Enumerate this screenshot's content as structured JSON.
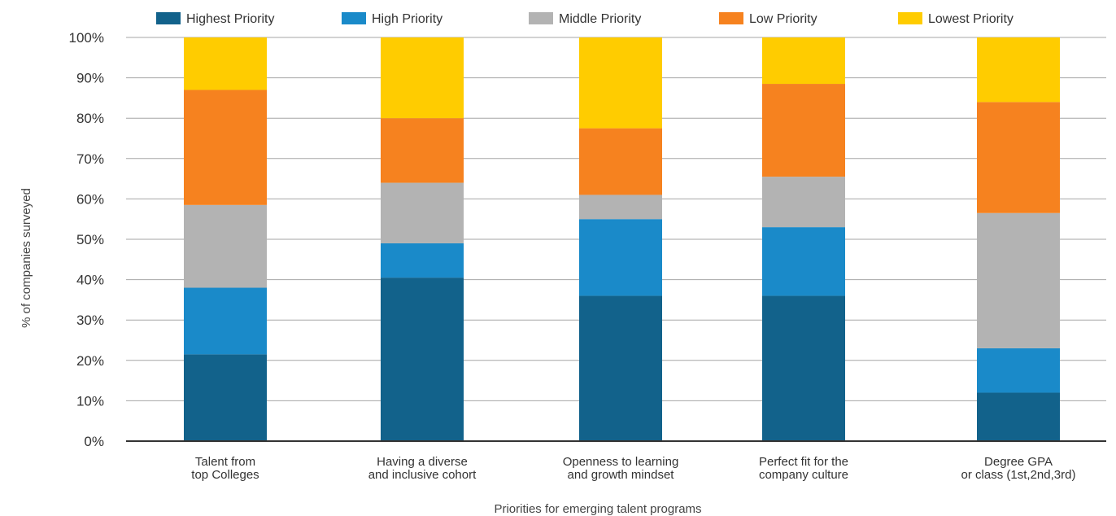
{
  "chart_data": {
    "type": "bar",
    "stacked": true,
    "categories": [
      [
        "Talent from",
        "top Colleges"
      ],
      [
        "Having a diverse",
        "and inclusive cohort"
      ],
      [
        "Openness to learning",
        "and growth mindset"
      ],
      [
        "Perfect fit for the",
        "company culture"
      ],
      [
        "Degree GPA",
        "or class (1st,2nd,3rd)"
      ]
    ],
    "series": [
      {
        "name": "Highest Priority",
        "color": "#12628b",
        "values": [
          21.5,
          40.5,
          36,
          36,
          12
        ]
      },
      {
        "name": "High Priority",
        "color": "#1a8ac9",
        "values": [
          16.5,
          8.5,
          19,
          17,
          11
        ]
      },
      {
        "name": "Middle Priority",
        "color": "#b3b3b3",
        "values": [
          20.5,
          15,
          6,
          12.5,
          33.5
        ]
      },
      {
        "name": "Low Priority",
        "color": "#f6821f",
        "values": [
          28.5,
          16,
          16.5,
          23,
          27.5
        ]
      },
      {
        "name": "Lowest Priority",
        "color": "#ffcc00",
        "values": [
          13,
          20,
          22.5,
          11.5,
          16
        ]
      }
    ],
    "xlabel": "Priorities for emerging talent programs",
    "ylabel": "% of companies surveyed",
    "ylim": [
      0,
      100
    ],
    "yticks": [
      "0%",
      "10%",
      "20%",
      "30%",
      "40%",
      "50%",
      "60%",
      "70%",
      "80%",
      "90%",
      "100%"
    ],
    "grid": true,
    "legend_position": "top"
  }
}
